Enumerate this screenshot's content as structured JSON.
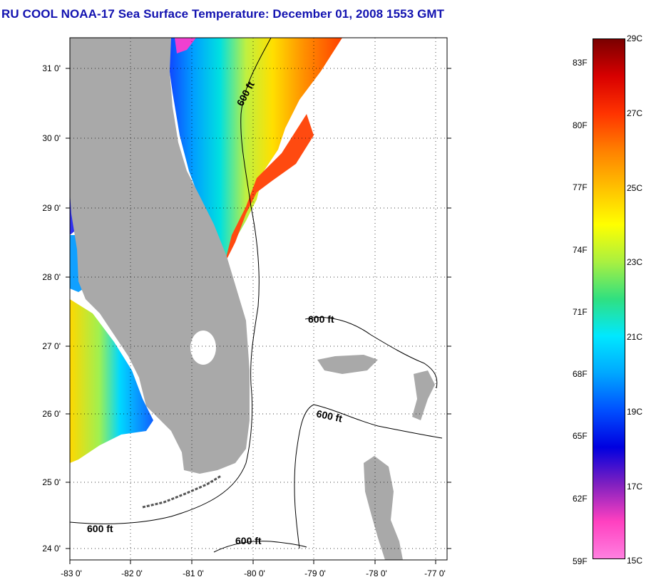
{
  "title": "RU COOL  NOAA-17  Sea Surface Temperature:  December 01, 2008 1553 GMT",
  "map": {
    "lon_ticks": [
      "-83 0'",
      "-82 0'",
      "-81 0'",
      "-80 0'",
      "-79 0'",
      "-78 0'",
      "-77 0'"
    ],
    "lat_ticks": [
      "31 0'",
      "30 0'",
      "29 0'",
      "28 0'",
      "27 0'",
      "26 0'",
      "25 0'",
      "24 0'"
    ],
    "contour_labels": [
      "600 ft",
      "600 ft",
      "600 ft",
      "600 ft",
      "600 ft"
    ],
    "colors": {
      "land": "#a9a9a9",
      "gridlines": "#000000",
      "cloud_mask": "#ffffff"
    }
  },
  "colorbar": {
    "fahrenheit_labels": [
      "83F",
      "80F",
      "77F",
      "74F",
      "71F",
      "68F",
      "65F",
      "62F",
      "59F"
    ],
    "celsius_labels": [
      "29C",
      "27C",
      "25C",
      "23C",
      "21C",
      "19C",
      "17C",
      "15C"
    ],
    "range_c": [
      15,
      29
    ],
    "range_f": [
      59,
      84.2
    ],
    "gradient_stops_top_to_bottom": [
      "#7a0000",
      "#d80000",
      "#ff3300",
      "#ff8000",
      "#ffc000",
      "#ffff00",
      "#aaf040",
      "#30e080",
      "#00e8ff",
      "#00a8ff",
      "#0050ff",
      "#0000e0",
      "#8020c0",
      "#ff40c0",
      "#ff80e0"
    ]
  }
}
